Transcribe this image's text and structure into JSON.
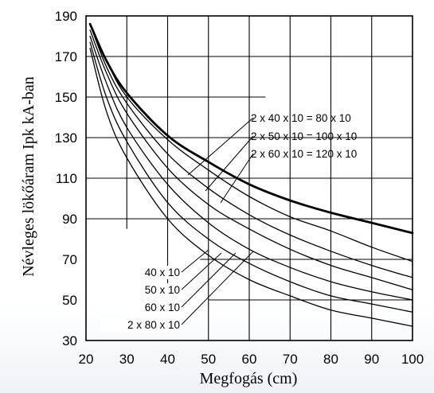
{
  "chart_data": {
    "type": "line",
    "title": "",
    "xlabel": "Megfogás (cm)",
    "ylabel": "Névleges lökőáram Ipk kA-ban",
    "xlim": [
      20,
      100
    ],
    "ylim": [
      30,
      190
    ],
    "x_ticks": [
      "20",
      "30",
      "40",
      "50",
      "60",
      "70",
      "80",
      "90",
      "100"
    ],
    "y_ticks": [
      "30",
      "50",
      "70",
      "90",
      "110",
      "130",
      "150",
      "170",
      "190"
    ],
    "grid": true,
    "series": [
      {
        "name": "80 x 10",
        "label": "2 x 40 x 10 =   80 x 10",
        "bold": true,
        "x": [
          21,
          25,
          30,
          40,
          50,
          60,
          70,
          80,
          90,
          100
        ],
        "y": [
          186,
          168,
          152,
          131,
          118,
          107,
          99,
          93,
          88,
          83
        ]
      },
      {
        "name": "100 x 10",
        "label": "2 x 50 x 10 = 100 x 10",
        "bold": false,
        "x": [
          21,
          25,
          30,
          40,
          50,
          60,
          70,
          80,
          90,
          100
        ],
        "y": [
          186,
          168,
          150,
          129,
          114,
          101,
          91,
          84,
          76,
          69
        ]
      },
      {
        "name": "120 x 10",
        "label": "2 x 60 x 10 = 120 x 10",
        "bold": false,
        "x": [
          21,
          25,
          30,
          40,
          50,
          60,
          70,
          80,
          90,
          100
        ],
        "y": [
          186,
          165,
          147,
          122,
          105,
          92,
          82,
          74,
          67,
          61
        ]
      },
      {
        "name": "40 x 10",
        "label": "40 x 10",
        "bold": false,
        "x": [
          21,
          25,
          30,
          40,
          50,
          60,
          70,
          80,
          90,
          100
        ],
        "y": [
          183,
          162,
          142,
          115,
          97,
          85,
          75,
          67,
          61,
          55
        ]
      },
      {
        "name": "50 x 10",
        "label": "50 x 10",
        "bold": false,
        "x": [
          21,
          25,
          30,
          40,
          50,
          60,
          70,
          80,
          90,
          100
        ],
        "y": [
          180,
          157,
          135,
          107,
          88,
          75,
          66,
          59,
          54,
          50
        ]
      },
      {
        "name": "60 x 10",
        "label": "60 x 10",
        "bold": false,
        "x": [
          21,
          25,
          30,
          40,
          50,
          60,
          70,
          80,
          90,
          100
        ],
        "y": [
          177,
          150,
          128,
          98,
          80,
          68,
          59,
          52,
          48,
          44
        ]
      },
      {
        "name": "2 x 80 x 10",
        "label": "2 x 80 x 10",
        "bold": false,
        "x": [
          21,
          25,
          30,
          40,
          50,
          60,
          70,
          80,
          90,
          100
        ],
        "y": [
          174,
          143,
          120,
          90,
          72,
          60,
          52,
          45,
          41,
          37
        ]
      }
    ]
  }
}
